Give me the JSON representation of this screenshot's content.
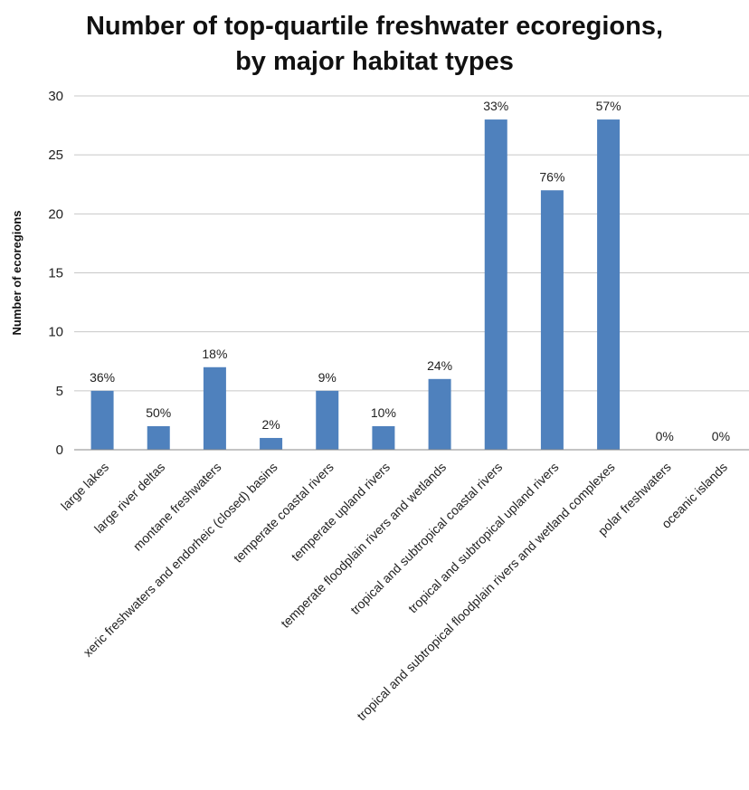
{
  "chart_data": {
    "type": "bar",
    "title": "Number of top-quartile freshwater ecoregions,\nby major habitat types",
    "xlabel": "",
    "ylabel": "Number of ecoregions",
    "ylim": [
      0,
      30
    ],
    "yticks": [
      "0",
      "5",
      "10",
      "15",
      "20",
      "25",
      "30"
    ],
    "grid": true,
    "legend": "none",
    "bar_color": "#4f81bd",
    "categories": [
      "large lakes",
      "large river deltas",
      "montane freshwaters",
      "xeric freshwaters and endorheic (closed) basins",
      "temperate coastal rivers",
      "temperate upland rivers",
      "temperate floodplain rivers and wetlands",
      "tropical and subtropical coastal rivers",
      "tropical and subtropical upland rivers",
      "tropical and subtropical floodplain rivers and wetland complexes",
      "polar freshwaters",
      "oceanic islands"
    ],
    "values": [
      5,
      2,
      7,
      1,
      5,
      2,
      6,
      28,
      22,
      28,
      0,
      0
    ],
    "data_labels": [
      "36%",
      "50%",
      "18%",
      "2%",
      "9%",
      "10%",
      "24%",
      "33%",
      "76%",
      "57%",
      "0%",
      "0%"
    ]
  }
}
